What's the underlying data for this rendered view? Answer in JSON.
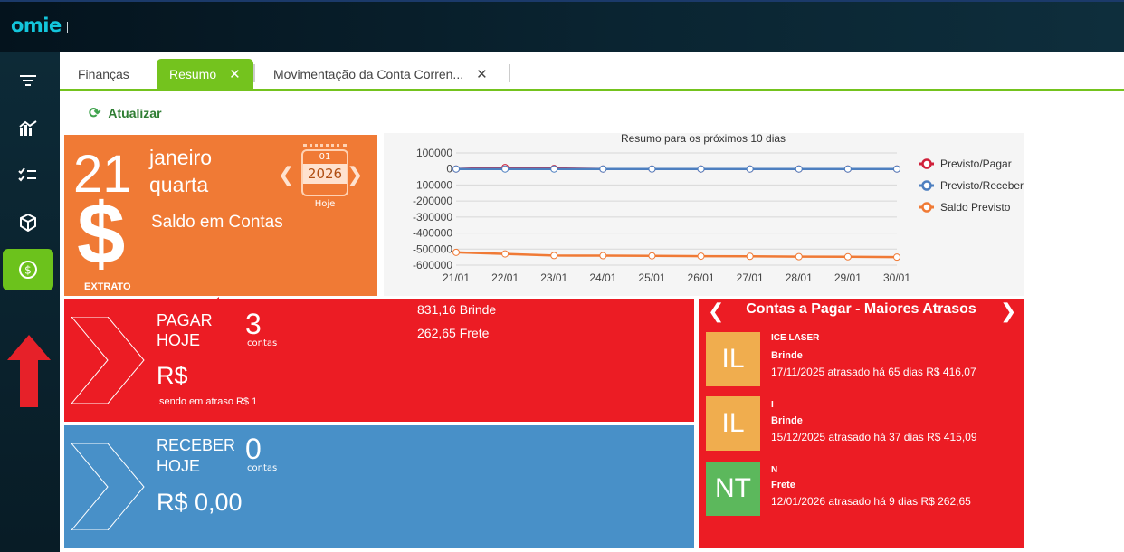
{
  "app": {
    "logo": "omie"
  },
  "sidebar": {
    "items": [
      {
        "icon": "filter-icon",
        "glyph": "⩸"
      },
      {
        "icon": "chart-icon",
        "glyph": "⌁"
      },
      {
        "icon": "checklist-icon",
        "glyph": "☑"
      },
      {
        "icon": "box-icon",
        "glyph": "⬡"
      },
      {
        "icon": "dollar-circle-icon",
        "glyph": "$",
        "active": true
      }
    ]
  },
  "tabs": [
    {
      "label": "Finanças"
    },
    {
      "label": "Resumo",
      "active": true,
      "close": "✕"
    },
    {
      "label": "Movimentação da Conta Corren...",
      "close": "✕"
    }
  ],
  "toolbar": {
    "refresh_label": "Atualizar"
  },
  "date_tile": {
    "day": "21",
    "month": "janeiro",
    "weekday": "quarta",
    "saldo_label": "Saldo em Contas",
    "dollar": "$",
    "extrato_label": "EXTRATO",
    "calendar": {
      "month": "01",
      "year": "2026",
      "today_label": "Hoje",
      "prev": "❮",
      "next": "❯"
    },
    "color": "#f07a35"
  },
  "chart_data": {
    "type": "line",
    "title": "Resumo para os próximos 10 dias",
    "x": [
      "21/01",
      "22/01",
      "23/01",
      "24/01",
      "25/01",
      "26/01",
      "27/01",
      "28/01",
      "29/01",
      "30/01"
    ],
    "ylim": [
      -600000,
      100000
    ],
    "yticks": [
      100000,
      0,
      -100000,
      -200000,
      -300000,
      -400000,
      -500000,
      -600000
    ],
    "grid": true,
    "legend_position": "right",
    "series": [
      {
        "name": "Previsto/Pagar",
        "color": "#d0203a",
        "values": [
          0,
          9000,
          3000,
          0,
          0,
          0,
          0,
          0,
          0,
          0
        ]
      },
      {
        "name": "Previsto/Receber",
        "color": "#4d7fc0",
        "values": [
          0,
          0,
          0,
          0,
          0,
          0,
          0,
          0,
          0,
          0
        ]
      },
      {
        "name": "Saldo Previsto",
        "color": "#f07a35",
        "values": [
          -520000,
          -530000,
          -540000,
          -541000,
          -542000,
          -544000,
          -545000,
          -547000,
          -548000,
          -550000
        ]
      }
    ]
  },
  "pagar": {
    "label_line1": "PAGAR",
    "label_line2": "HOJE",
    "count": "3",
    "count_unit": "contas",
    "money": "R$",
    "overdue_text": "sendo em atraso R$ 1",
    "items": [
      "831,16 Brinde",
      "262,65 Frete"
    ],
    "color": "#ec1c24"
  },
  "receber": {
    "label_line1": "RECEBER",
    "label_line2": "HOJE",
    "count": "0",
    "count_unit": "contas",
    "money": "R$ 0,00",
    "color": "#4890c8"
  },
  "atrasos": {
    "title": "Contas a Pagar - Maiores Atrasos",
    "prev": "❮",
    "next": "❯",
    "items": [
      {
        "initials": "IL",
        "name": "ICE LASER",
        "category": "Brinde",
        "detail": "17/11/2025 atrasado há 65 dias R$ 416,07",
        "color": "#f0ad4e"
      },
      {
        "initials": "IL",
        "name": "I",
        "category": "Brinde",
        "detail": "15/12/2025 atrasado há 37 dias R$ 415,09",
        "color": "#f0ad4e"
      },
      {
        "initials": "NT",
        "name": "N",
        "category": "Frete",
        "detail": "12/01/2026 atrasado há 9 dias R$ 262,65",
        "color": "#5cb85c"
      }
    ]
  }
}
